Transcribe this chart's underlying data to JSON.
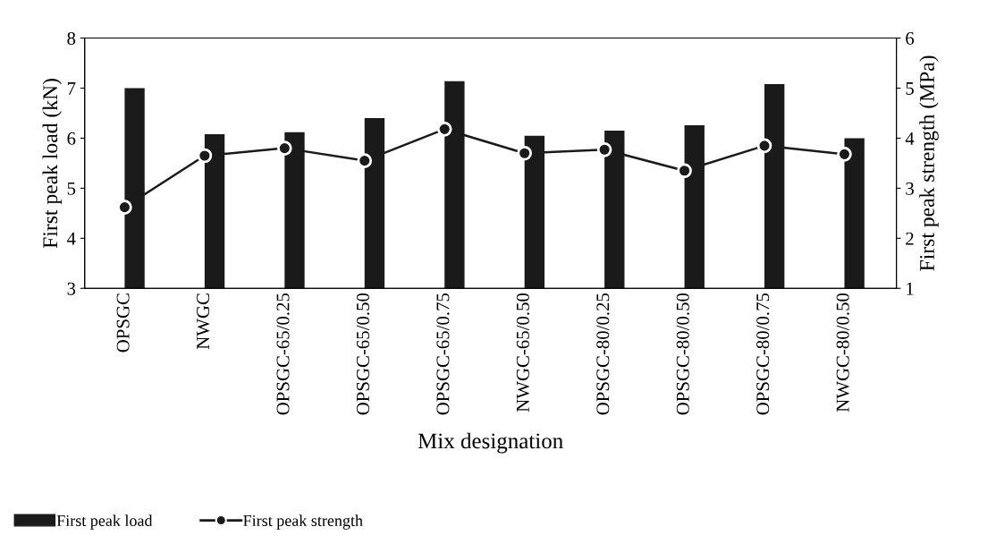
{
  "chart_data": {
    "type": "bar",
    "xlabel": "Mix designation",
    "ylabel": "First peak load (kN)",
    "y2label": "First peak strength (MPa)",
    "categories": [
      "OPSGC",
      "NWGC",
      "OPSGC-65/0.25",
      "OPSGC-65/0.50",
      "OPSGC-65/0.75",
      "NWGC-65/0.50",
      "OPSGC-80/0.25",
      "OPSGC-80/0.50",
      "OPSGC-80/0.75",
      "NWGC-80/0.50"
    ],
    "series": [
      {
        "name": "First peak load",
        "color": "#1a1a1a",
        "values": [
          7.0,
          6.08,
          6.12,
          6.4,
          7.14,
          6.05,
          6.15,
          6.26,
          7.08,
          6.0
        ]
      },
      {
        "name": "First peak strength",
        "type": "line",
        "axis": "y2",
        "color": "#1a1a1a",
        "marker": "circle",
        "values": [
          2.62,
          3.65,
          3.8,
          3.55,
          4.18,
          3.7,
          3.77,
          3.35,
          3.85,
          3.68
        ]
      }
    ],
    "ylim": [
      3,
      8
    ],
    "yticks": [
      3,
      4,
      5,
      6,
      7,
      8
    ],
    "y2lim": [
      1,
      6
    ],
    "y2ticks": [
      1,
      2,
      3,
      4,
      5,
      6
    ],
    "grid": false,
    "legend": "bottom left"
  }
}
